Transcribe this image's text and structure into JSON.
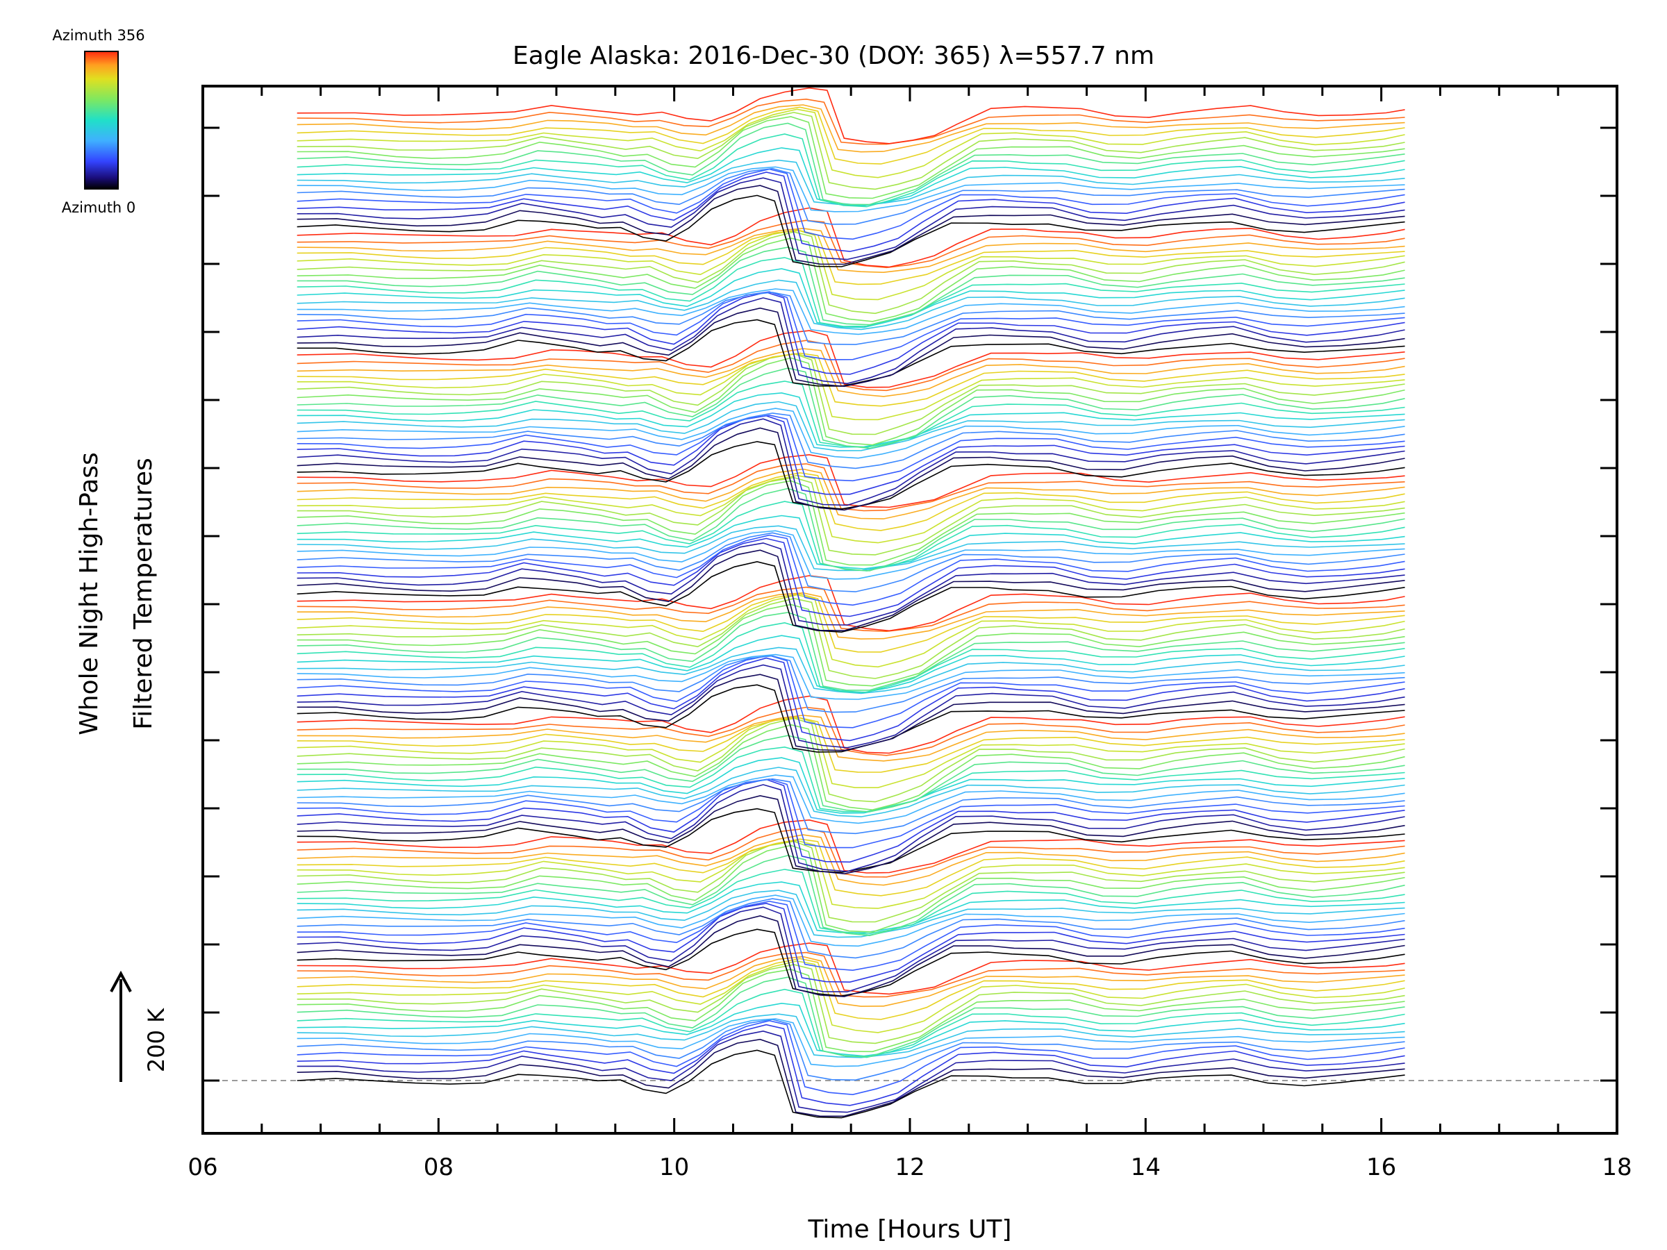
{
  "chart_data": {
    "type": "line",
    "title": "Eagle Alaska: 2016-Dec-30 (DOY: 365) λ=557.7 nm",
    "xlabel": "Time [Hours UT]",
    "ylabel_line1": "Whole Night High-Pass",
    "ylabel_line2": "Filtered Temperatures",
    "xlim": [
      6,
      18
    ],
    "x_tick_labels": [
      "06",
      "08",
      "10",
      "12",
      "14",
      "16",
      "18"
    ],
    "x_tick_values": [
      6,
      8,
      10,
      12,
      14,
      16,
      18
    ],
    "colorbar": {
      "top_label": "Azimuth 356",
      "bottom_label": "Azimuth 0",
      "min": 0,
      "max": 356
    },
    "scale_bar_label": "200 K",
    "baseline": "dashed grey zero line",
    "series_count": 144,
    "azimuth_cycle_length": 18,
    "time_range_hours": [
      6.8,
      16.2
    ],
    "profile": {
      "hours": [
        6.8,
        7.2,
        7.6,
        7.9,
        8.2,
        8.5,
        8.8,
        9.0,
        9.3,
        9.5,
        9.7,
        9.9,
        10.1,
        10.3,
        10.5,
        10.7,
        10.9,
        11.05,
        11.2,
        11.4,
        11.6,
        11.8,
        12.0,
        12.2,
        12.5,
        12.8,
        13.0,
        13.3,
        13.6,
        13.9,
        14.2,
        14.5,
        14.8,
        15.1,
        15.4,
        15.7,
        16.0,
        16.2
      ],
      "temperature_k": [
        0,
        5,
        -10,
        -15,
        -14,
        -5,
        35,
        25,
        8,
        -8,
        0,
        -40,
        -55,
        0,
        80,
        120,
        140,
        120,
        -150,
        -170,
        -175,
        -150,
        -120,
        -60,
        20,
        25,
        20,
        18,
        -15,
        -20,
        5,
        20,
        30,
        -5,
        -20,
        -10,
        5,
        20
      ]
    }
  }
}
